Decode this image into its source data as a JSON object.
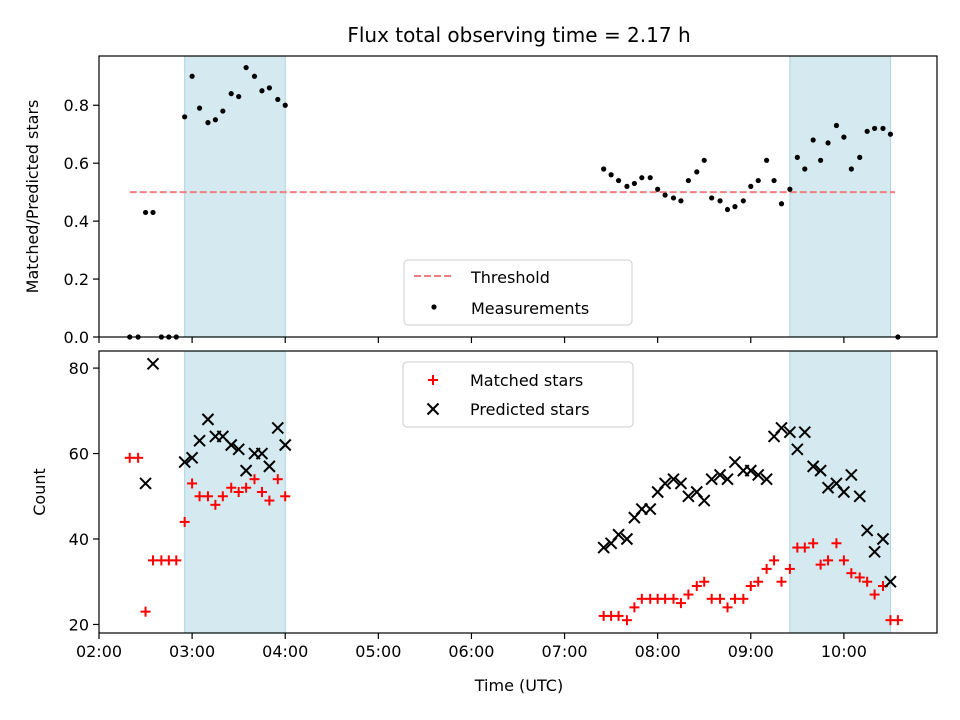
{
  "title": "Flux total observing time = 2.17 h",
  "chart_data": [
    {
      "type": "scatter",
      "ylabel": "Matched/Predicted stars",
      "ylim": [
        0,
        0.97
      ],
      "xlim": [
        2.0,
        11.0
      ],
      "yticks": [
        "0.0",
        "0.2",
        "0.4",
        "0.6",
        "0.8"
      ],
      "yticks_values": [
        0,
        0.2,
        0.4,
        0.6,
        0.8
      ],
      "legend_position": "bottom-center",
      "legend": [
        "Threshold",
        "Measurements"
      ],
      "threshold": {
        "name": "Threshold",
        "value": 0.5,
        "x": [
          2.33,
          10.55
        ],
        "color": "#f08080"
      },
      "shaded_regions": [
        [
          2.92,
          4.0
        ],
        [
          9.42,
          10.5
        ]
      ],
      "shade_color": "#d4eaf0",
      "series": [
        {
          "name": "Measurements",
          "color": "#000000",
          "points": [
            [
              2.33,
              0.0
            ],
            [
              2.42,
              0.0
            ],
            [
              2.5,
              0.43
            ],
            [
              2.58,
              0.43
            ],
            [
              2.67,
              0.0
            ],
            [
              2.75,
              0.0
            ],
            [
              2.83,
              0.0
            ],
            [
              2.92,
              0.76
            ],
            [
              3.0,
              0.9
            ],
            [
              3.08,
              0.79
            ],
            [
              3.17,
              0.74
            ],
            [
              3.25,
              0.75
            ],
            [
              3.33,
              0.78
            ],
            [
              3.42,
              0.84
            ],
            [
              3.5,
              0.83
            ],
            [
              3.58,
              0.93
            ],
            [
              3.67,
              0.9
            ],
            [
              3.75,
              0.85
            ],
            [
              3.83,
              0.86
            ],
            [
              3.92,
              0.82
            ],
            [
              4.0,
              0.8
            ],
            [
              7.42,
              0.58
            ],
            [
              7.5,
              0.56
            ],
            [
              7.58,
              0.54
            ],
            [
              7.67,
              0.52
            ],
            [
              7.75,
              0.53
            ],
            [
              7.83,
              0.55
            ],
            [
              7.92,
              0.55
            ],
            [
              8.0,
              0.51
            ],
            [
              8.08,
              0.49
            ],
            [
              8.17,
              0.48
            ],
            [
              8.25,
              0.47
            ],
            [
              8.33,
              0.54
            ],
            [
              8.42,
              0.57
            ],
            [
              8.5,
              0.61
            ],
            [
              8.58,
              0.48
            ],
            [
              8.67,
              0.47
            ],
            [
              8.75,
              0.44
            ],
            [
              8.83,
              0.45
            ],
            [
              8.92,
              0.47
            ],
            [
              9.0,
              0.52
            ],
            [
              9.08,
              0.54
            ],
            [
              9.17,
              0.61
            ],
            [
              9.25,
              0.54
            ],
            [
              9.33,
              0.46
            ],
            [
              9.42,
              0.51
            ],
            [
              9.5,
              0.62
            ],
            [
              9.58,
              0.58
            ],
            [
              9.67,
              0.68
            ],
            [
              9.75,
              0.61
            ],
            [
              9.83,
              0.67
            ],
            [
              9.92,
              0.73
            ],
            [
              10.0,
              0.69
            ],
            [
              10.08,
              0.58
            ],
            [
              10.17,
              0.62
            ],
            [
              10.25,
              0.71
            ],
            [
              10.33,
              0.72
            ],
            [
              10.42,
              0.72
            ],
            [
              10.5,
              0.7
            ],
            [
              10.58,
              0.0
            ]
          ]
        }
      ]
    },
    {
      "type": "scatter",
      "xlabel": "Time (UTC)",
      "ylabel": "Count",
      "ylim": [
        18,
        84
      ],
      "xlim": [
        2.0,
        11.0
      ],
      "yticks": [
        "20",
        "40",
        "60",
        "80"
      ],
      "yticks_values": [
        20,
        40,
        60,
        80
      ],
      "xticks": [
        "02:00",
        "03:00",
        "04:00",
        "05:00",
        "06:00",
        "07:00",
        "08:00",
        "09:00",
        "10:00"
      ],
      "xticks_values": [
        2,
        3,
        4,
        5,
        6,
        7,
        8,
        9,
        10
      ],
      "legend_position": "top-center",
      "legend": [
        "Matched stars",
        "Predicted stars"
      ],
      "shaded_regions": [
        [
          2.92,
          4.0
        ],
        [
          9.42,
          10.5
        ]
      ],
      "shade_color": "#d4eaf0",
      "series": [
        {
          "name": "Matched stars",
          "marker": "plus",
          "color": "#ff0000",
          "points": [
            [
              2.33,
              59
            ],
            [
              2.42,
              59
            ],
            [
              2.5,
              23
            ],
            [
              2.58,
              35
            ],
            [
              2.67,
              35
            ],
            [
              2.75,
              35
            ],
            [
              2.83,
              35
            ],
            [
              2.92,
              44
            ],
            [
              3.0,
              53
            ],
            [
              3.08,
              50
            ],
            [
              3.17,
              50
            ],
            [
              3.25,
              48
            ],
            [
              3.33,
              50
            ],
            [
              3.42,
              52
            ],
            [
              3.5,
              51
            ],
            [
              3.58,
              52
            ],
            [
              3.67,
              54
            ],
            [
              3.75,
              51
            ],
            [
              3.83,
              49
            ],
            [
              3.92,
              54
            ],
            [
              4.0,
              50
            ],
            [
              7.42,
              22
            ],
            [
              7.5,
              22
            ],
            [
              7.58,
              22
            ],
            [
              7.67,
              21
            ],
            [
              7.75,
              24
            ],
            [
              7.83,
              26
            ],
            [
              7.92,
              26
            ],
            [
              8.0,
              26
            ],
            [
              8.08,
              26
            ],
            [
              8.17,
              26
            ],
            [
              8.25,
              25
            ],
            [
              8.33,
              27
            ],
            [
              8.42,
              29
            ],
            [
              8.5,
              30
            ],
            [
              8.58,
              26
            ],
            [
              8.67,
              26
            ],
            [
              8.75,
              24
            ],
            [
              8.83,
              26
            ],
            [
              8.92,
              26
            ],
            [
              9.0,
              29
            ],
            [
              9.08,
              30
            ],
            [
              9.17,
              33
            ],
            [
              9.25,
              35
            ],
            [
              9.33,
              30
            ],
            [
              9.42,
              33
            ],
            [
              9.5,
              38
            ],
            [
              9.58,
              38
            ],
            [
              9.67,
              39
            ],
            [
              9.75,
              34
            ],
            [
              9.83,
              35
            ],
            [
              9.92,
              39
            ],
            [
              10.0,
              35
            ],
            [
              10.08,
              32
            ],
            [
              10.17,
              31
            ],
            [
              10.25,
              30
            ],
            [
              10.33,
              27
            ],
            [
              10.42,
              29
            ],
            [
              10.5,
              21
            ],
            [
              10.58,
              21
            ]
          ]
        },
        {
          "name": "Predicted stars",
          "marker": "x",
          "color": "#000000",
          "points": [
            [
              2.5,
              53
            ],
            [
              2.58,
              81
            ],
            [
              2.92,
              58
            ],
            [
              3.0,
              59
            ],
            [
              3.08,
              63
            ],
            [
              3.17,
              68
            ],
            [
              3.25,
              64
            ],
            [
              3.33,
              64
            ],
            [
              3.42,
              62
            ],
            [
              3.5,
              61
            ],
            [
              3.58,
              56
            ],
            [
              3.67,
              60
            ],
            [
              3.75,
              60
            ],
            [
              3.83,
              57
            ],
            [
              3.92,
              66
            ],
            [
              4.0,
              62
            ],
            [
              7.42,
              38
            ],
            [
              7.5,
              39
            ],
            [
              7.58,
              41
            ],
            [
              7.67,
              40
            ],
            [
              7.75,
              45
            ],
            [
              7.83,
              47
            ],
            [
              7.92,
              47
            ],
            [
              8.0,
              51
            ],
            [
              8.08,
              53
            ],
            [
              8.17,
              54
            ],
            [
              8.25,
              53
            ],
            [
              8.33,
              50
            ],
            [
              8.42,
              51
            ],
            [
              8.5,
              49
            ],
            [
              8.58,
              54
            ],
            [
              8.67,
              55
            ],
            [
              8.75,
              54
            ],
            [
              8.83,
              58
            ],
            [
              8.92,
              56
            ],
            [
              9.0,
              56
            ],
            [
              9.08,
              55
            ],
            [
              9.17,
              54
            ],
            [
              9.25,
              64
            ],
            [
              9.33,
              66
            ],
            [
              9.42,
              65
            ],
            [
              9.5,
              61
            ],
            [
              9.58,
              65
            ],
            [
              9.67,
              57
            ],
            [
              9.75,
              56
            ],
            [
              9.83,
              52
            ],
            [
              9.92,
              53
            ],
            [
              10.0,
              51
            ],
            [
              10.08,
              55
            ],
            [
              10.17,
              50
            ],
            [
              10.25,
              42
            ],
            [
              10.33,
              37
            ],
            [
              10.42,
              40
            ],
            [
              10.5,
              30
            ]
          ]
        }
      ]
    }
  ]
}
